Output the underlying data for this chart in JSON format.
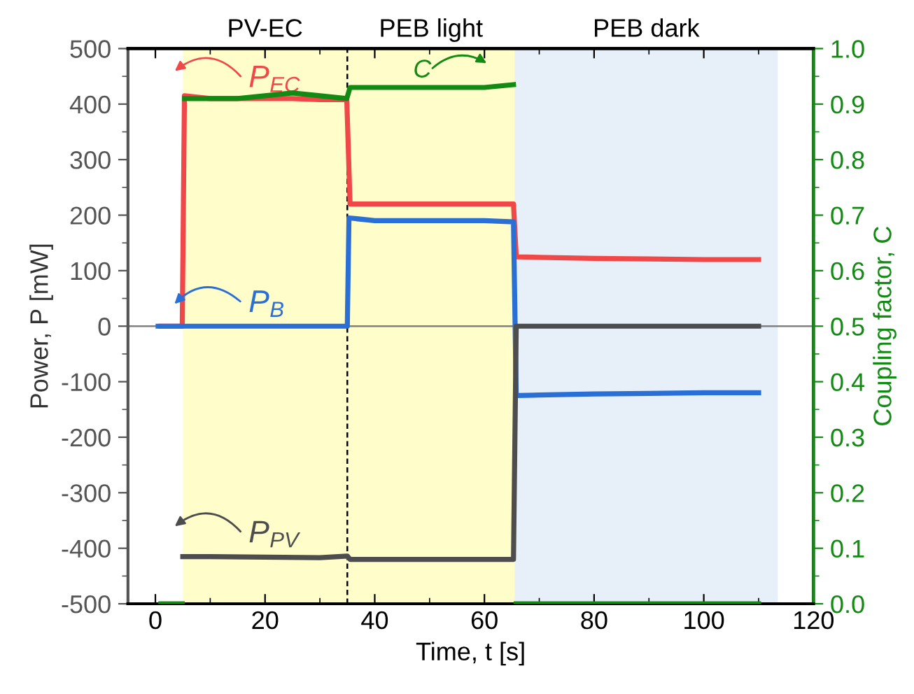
{
  "chart_data": {
    "type": "line",
    "xlabel": "Time, t [s]",
    "ylabel": "Power, P [mW]",
    "y2label": "Coupling factor, C",
    "xlim": [
      -5,
      120
    ],
    "xticks": [
      0,
      20,
      40,
      60,
      80,
      100,
      120
    ],
    "ylim": [
      -500,
      500
    ],
    "yticks": [
      -500,
      -400,
      -300,
      -200,
      -100,
      0,
      100,
      200,
      300,
      400,
      500
    ],
    "y2lim": [
      0,
      1.0
    ],
    "y2ticks": [
      {
        "value": 0,
        "label": "0.0"
      },
      0.1,
      0.2,
      0.3,
      0.4,
      0.5,
      0.6,
      0.7,
      0.8,
      0.9,
      {
        "value": 1.0,
        "label": "1.0"
      }
    ],
    "grid": false,
    "legend": "top left",
    "marker": "none",
    "line_style": "solid",
    "series": [
      {
        "name": "P$_{EC}$",
        "color": "#f04848",
        "x": [
          1,
          4.9,
          5.3,
          10,
          15,
          20,
          25,
          30,
          34.9,
          35.5,
          40,
          50,
          60,
          65.3,
          65.8,
          70,
          80,
          90,
          100,
          110
        ],
        "values": [
          0,
          0,
          415,
          410,
          410,
          410,
          410,
          408,
          408,
          220,
          220,
          220,
          220,
          220,
          125,
          124,
          122,
          121,
          120,
          120
        ]
      },
      {
        "name": "P$_{B}$",
        "color": "#2a6fd6",
        "x": [
          0.5,
          10,
          20,
          30,
          35,
          35.3,
          40,
          50,
          60,
          65.3,
          65.8,
          70,
          80,
          90,
          100,
          110
        ],
        "values": [
          0,
          0,
          0,
          0,
          0,
          195,
          190,
          190,
          190,
          188,
          -125,
          -124,
          -122,
          -121,
          -120,
          -120
        ]
      },
      {
        "name": "P$_{PV}$",
        "color": "#4d4d4d",
        "x": [
          5,
          10,
          20,
          30,
          35,
          35.5,
          40,
          50,
          60,
          65.3,
          65.8,
          80,
          100,
          110
        ],
        "values": [
          -415,
          -415,
          -416,
          -417,
          -414,
          -420,
          -420,
          -420,
          -420,
          -420,
          0,
          0,
          0,
          0
        ]
      },
      {
        "name": "C",
        "color": "#138a13",
        "axis": "y2",
        "x": [
          1,
          4.9,
          5.1,
          5.3,
          10,
          15,
          20,
          25,
          30,
          34.9,
          35.5,
          40,
          50,
          60,
          65.3,
          65.5,
          65.8,
          80,
          100,
          110
        ],
        "values": [
          0,
          0,
          null,
          0.91,
          0.91,
          0.91,
          0.915,
          0.92,
          0.915,
          0.91,
          0.93,
          0.93,
          0.93,
          0.93,
          0.935,
          null,
          0,
          0,
          0,
          0
        ]
      }
    ],
    "ref_lines": [
      {
        "axis": "y",
        "value": 0,
        "color": "#808080",
        "line_style": "solid"
      },
      {
        "axis": "x",
        "value": 35,
        "color": "#000000",
        "line_style": "dashed"
      }
    ],
    "bands": [
      {
        "axis": "x",
        "from": 5,
        "to": 35,
        "label": "PV-EC",
        "color": "#fffdca"
      },
      {
        "axis": "x",
        "from": 35,
        "to": 65.5,
        "label": "PEB light",
        "color": "#fffdca"
      },
      {
        "axis": "x",
        "from": 65.5,
        "to": 113.5,
        "label": "PEB dark",
        "color": "#e7eff8"
      }
    ]
  }
}
